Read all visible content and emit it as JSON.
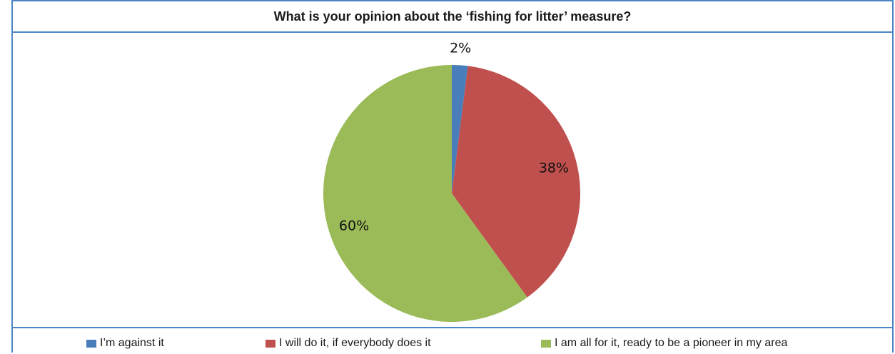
{
  "chart_data": {
    "type": "pie",
    "title": "What is your opinion about the ‘fishing for litter’ measure?",
    "categories": [
      "I’m against it",
      "I will do it, if everybody does it",
      "I am all for it, ready to be a pioneer in my area"
    ],
    "values": [
      2,
      38,
      60
    ],
    "data_labels": [
      "2%",
      "38%",
      "60%"
    ],
    "colors": [
      "#4a7ebb",
      "#c0504d",
      "#9bbb59"
    ],
    "legend_position": "bottom"
  }
}
